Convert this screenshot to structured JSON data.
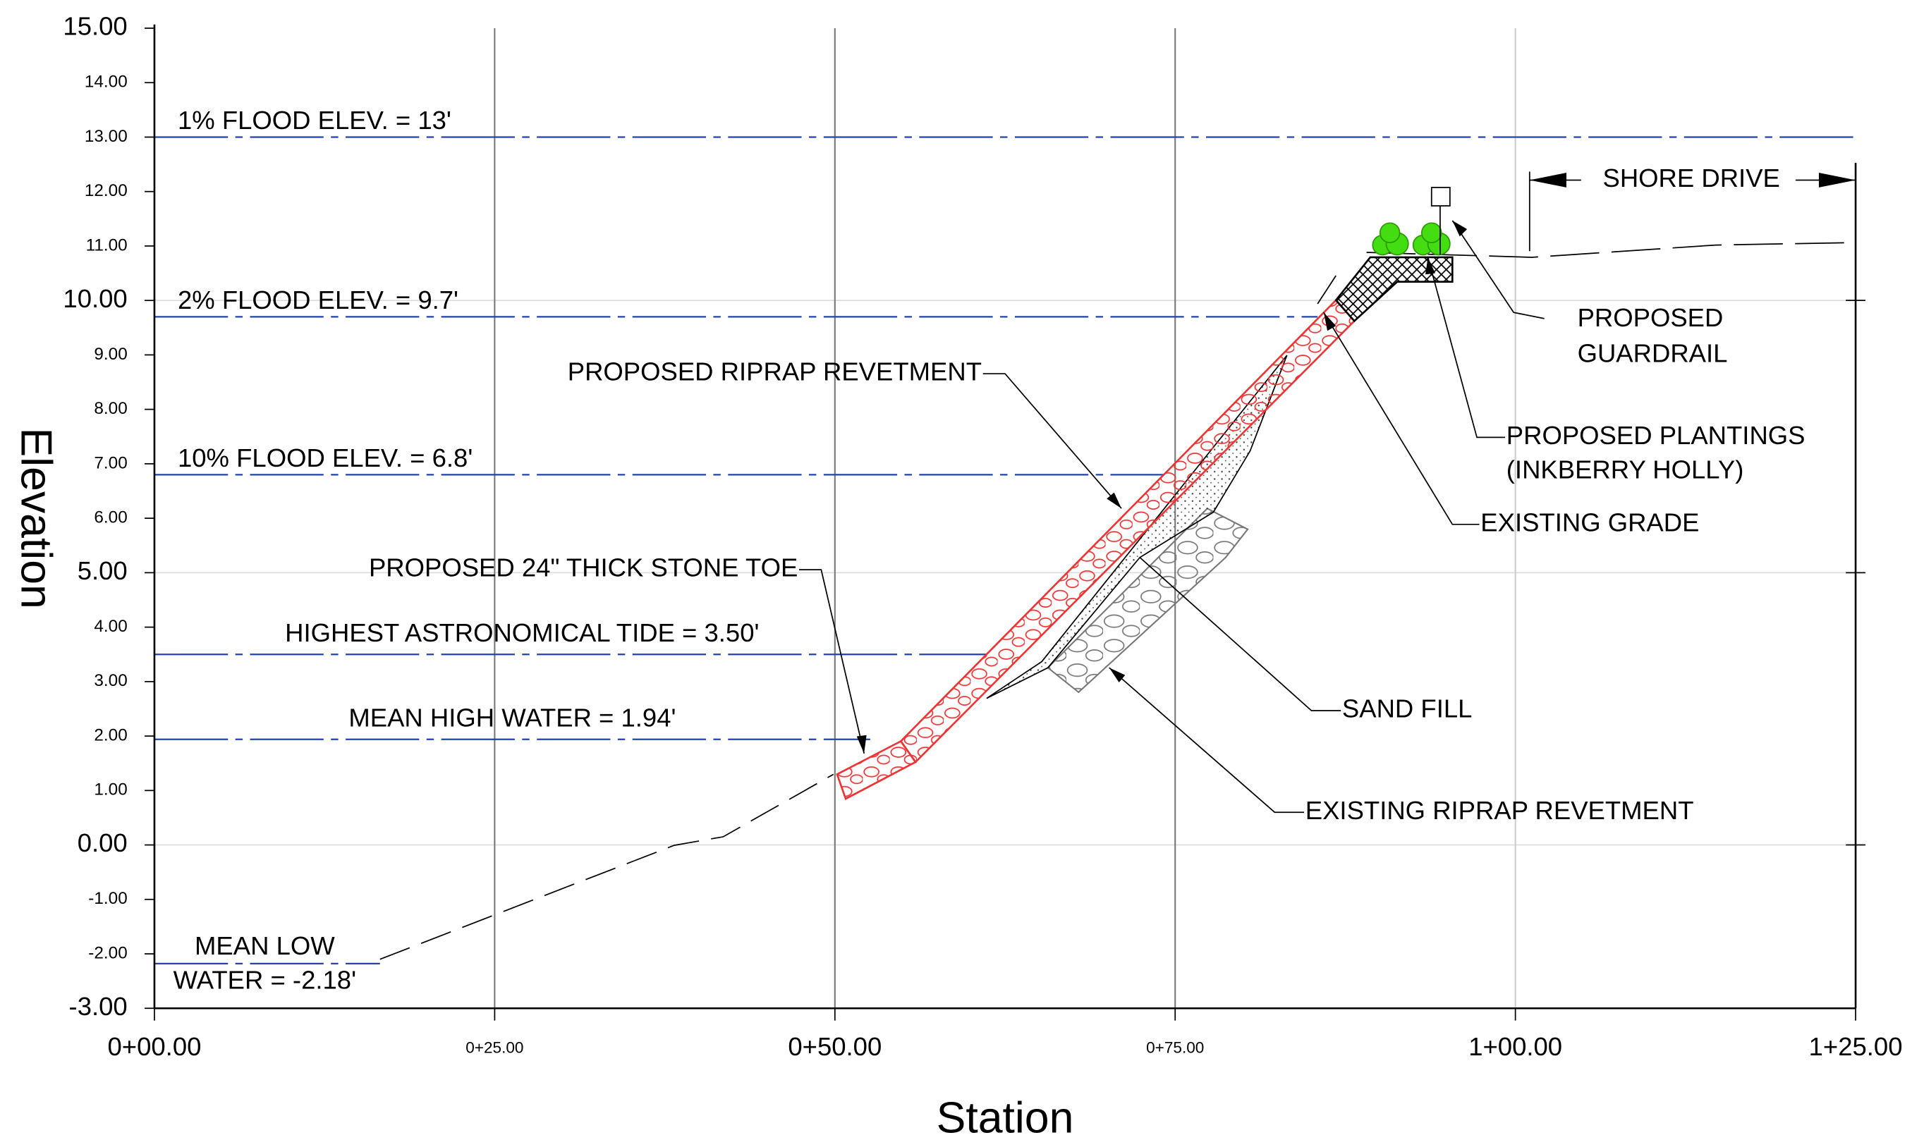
{
  "axes": {
    "x_label": "Station",
    "y_label": "Elevation",
    "xlim": [
      0,
      125
    ],
    "ylim": [
      -3,
      15
    ],
    "xticks": [
      {
        "value": 0,
        "label": "0+00.00"
      },
      {
        "value": 25,
        "label": "0+25.00"
      },
      {
        "value": 50,
        "label": "0+50.00"
      },
      {
        "value": 75,
        "label": "0+75.00"
      },
      {
        "value": 100,
        "label": "1+00.00"
      },
      {
        "value": 125,
        "label": "1+25.00"
      }
    ],
    "yticks": [
      {
        "value": 15,
        "label": "15.00"
      },
      {
        "value": 14,
        "label": "14.00"
      },
      {
        "value": 13,
        "label": "13.00"
      },
      {
        "value": 12,
        "label": "12.00"
      },
      {
        "value": 11,
        "label": "11.00"
      },
      {
        "value": 10,
        "label": "10.00"
      },
      {
        "value": 9,
        "label": "9.00"
      },
      {
        "value": 8,
        "label": "8.00"
      },
      {
        "value": 7,
        "label": "7.00"
      },
      {
        "value": 6,
        "label": "6.00"
      },
      {
        "value": 5,
        "label": "5.00"
      },
      {
        "value": 4,
        "label": "4.00"
      },
      {
        "value": 3,
        "label": "3.00"
      },
      {
        "value": 2,
        "label": "2.00"
      },
      {
        "value": 1,
        "label": "1.00"
      },
      {
        "value": 0,
        "label": "0.00"
      },
      {
        "value": -1,
        "label": "-1.00"
      },
      {
        "value": -2,
        "label": "-2.00"
      },
      {
        "value": -3,
        "label": "-3.00"
      }
    ]
  },
  "water_levels": [
    {
      "label": "1% FLOOD ELEV. = 13'",
      "value": 13
    },
    {
      "label": "2% FLOOD ELEV. = 9.7'",
      "value": 9.7
    },
    {
      "label": "10% FLOOD ELEV. = 6.8'",
      "value": 6.8
    },
    {
      "label": "HIGHEST ASTRONOMICAL TIDE = 3.50'",
      "value": 3.5
    },
    {
      "label": "MEAN HIGH WATER = 1.94'",
      "value": 1.94
    },
    {
      "label": [
        "MEAN LOW",
        "WATER = -2.18'"
      ],
      "value": -2.18
    }
  ],
  "annotations": {
    "shore_drive": "SHORE DRIVE",
    "guardrail": [
      "PROPOSED",
      "GUARDRAIL"
    ],
    "plantings": [
      "PROPOSED PLANTINGS",
      "(INKBERRY HOLLY)"
    ],
    "existing_grade": "EXISTING GRADE",
    "proposed_riprap": "PROPOSED RIPRAP REVETMENT",
    "stone_toe": "PROPOSED 24\" THICK  STONE TOE",
    "sand_fill": "SAND FILL",
    "existing_riprap": "EXISTING RIPRAP REVETMENT"
  }
}
